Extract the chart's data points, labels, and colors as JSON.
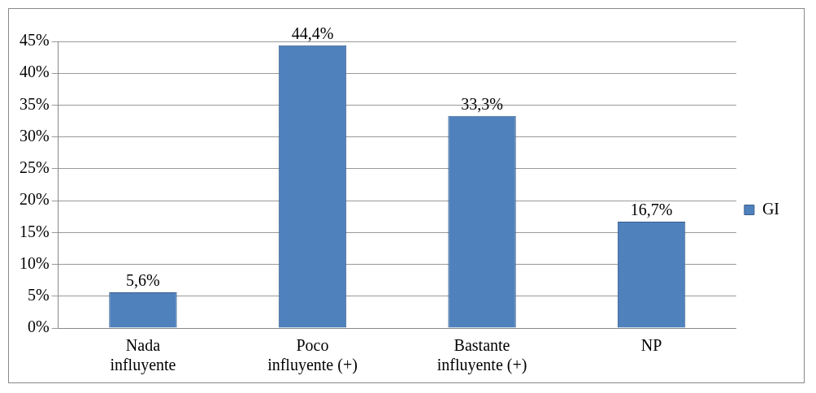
{
  "chart_data": {
    "type": "bar",
    "categories": [
      "Nada influyente",
      "Poco influyente (+)",
      "Bastante influyente (+)",
      "NP"
    ],
    "series": [
      {
        "name": "GI",
        "color": "#4f81bd",
        "values": [
          5.6,
          44.4,
          33.3,
          16.7
        ],
        "value_labels": [
          "5,6%",
          "44,4%",
          "33,3%",
          "16,7%"
        ]
      }
    ],
    "ylim": [
      0,
      45
    ],
    "yticks": [
      {
        "value": 0,
        "label": "0%"
      },
      {
        "value": 5,
        "label": "5%"
      },
      {
        "value": 10,
        "label": "10%"
      },
      {
        "value": 15,
        "label": "15%"
      },
      {
        "value": 20,
        "label": "20%"
      },
      {
        "value": 25,
        "label": "25%"
      },
      {
        "value": 30,
        "label": "30%"
      },
      {
        "value": 35,
        "label": "35%"
      },
      {
        "value": 40,
        "label": "40%"
      },
      {
        "value": 45,
        "label": "45%"
      }
    ],
    "grid": "y",
    "legend": "right"
  }
}
